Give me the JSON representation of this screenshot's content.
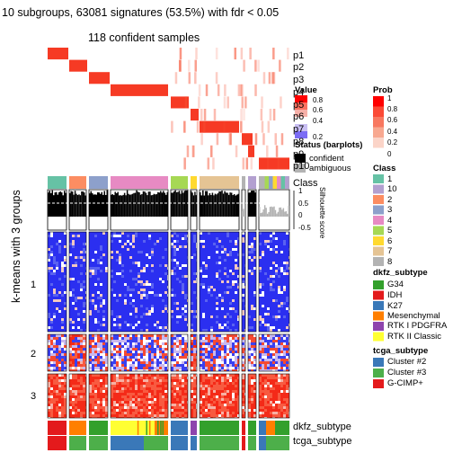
{
  "title": "10 subgroups, 63081 signatures (53.5%) with fdr < 0.05",
  "subtitle": "118 confident samples",
  "ylabel": "k-means with 3 groups",
  "chart_data": {
    "type": "heatmap",
    "n_samples": 118,
    "prob_rows": [
      "p1",
      "p2",
      "p3",
      "p4",
      "p5",
      "p6",
      "p7",
      "p8",
      "p9",
      "p10"
    ],
    "class_row_label": "Class",
    "silhouette": {
      "label": "Silhouette score",
      "ticks": [
        "1",
        "0.5",
        "0",
        "-0.5"
      ],
      "ylim": [
        -0.5,
        1
      ]
    },
    "row_groups": [
      "1",
      "2",
      "3"
    ],
    "annotation_rows": [
      "dkfz_subtype",
      "tcga_subtype"
    ]
  },
  "legends": {
    "value": {
      "title": "Value",
      "ticks": [
        "1",
        "0.8",
        "0.6",
        "0.4",
        "0.2",
        "0"
      ]
    },
    "prob": {
      "title": "Prob",
      "ticks": [
        "1",
        "0.8",
        "0.6",
        "0.4",
        "0.2",
        "0"
      ]
    },
    "status": {
      "title": "Status (barplots)",
      "items": [
        {
          "label": "confident",
          "color": "#000000"
        },
        {
          "label": "ambiguous",
          "color": "#b3b3b3"
        }
      ]
    },
    "class": {
      "title": "Class",
      "items": [
        {
          "label": "1",
          "color": "#66c2a5"
        },
        {
          "label": "10",
          "color": "#b3a0d0"
        },
        {
          "label": "2",
          "color": "#fc8d62"
        },
        {
          "label": "3",
          "color": "#8da0cb"
        },
        {
          "label": "4",
          "color": "#e78ac3"
        },
        {
          "label": "5",
          "color": "#a6d854"
        },
        {
          "label": "6",
          "color": "#ffd92f"
        },
        {
          "label": "7",
          "color": "#e5c494"
        },
        {
          "label": "8",
          "color": "#b3b3b3"
        }
      ]
    },
    "dkfz": {
      "title": "dkfz_subtype",
      "items": [
        {
          "label": "G34",
          "color": "#33a02c"
        },
        {
          "label": "IDH",
          "color": "#e31a1c"
        },
        {
          "label": "K27",
          "color": "#3a78b8"
        },
        {
          "label": "Mesenchymal",
          "color": "#ff7f00"
        },
        {
          "label": "RTK I PDGFRA",
          "color": "#8e44ad"
        },
        {
          "label": "RTK II Classic",
          "color": "#ffff33"
        }
      ]
    },
    "tcga": {
      "title": "tcga_subtype",
      "items": [
        {
          "label": "Cluster #2",
          "color": "#3a78b8"
        },
        {
          "label": "Cluster #3",
          "color": "#4daf4a"
        },
        {
          "label": "G-CIMP+",
          "color": "#e41a1c"
        }
      ]
    }
  }
}
